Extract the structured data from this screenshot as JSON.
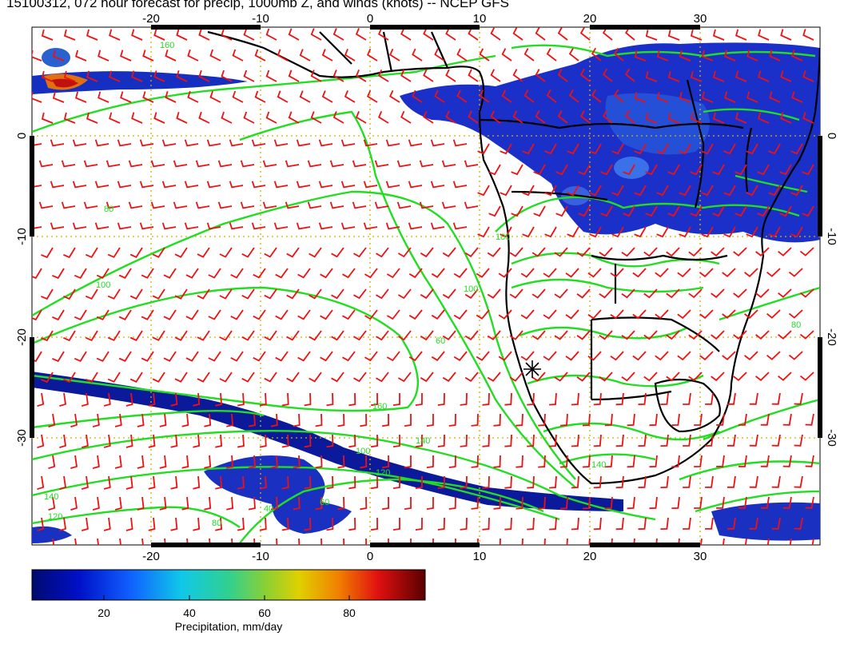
{
  "title": "15100312, 072 hour forecast for precip, 1000mb Z, and winds (knots) -- NCEP GFS",
  "map": {
    "lon_ticks": [
      "-20",
      "-10",
      "0",
      "10",
      "20",
      "30"
    ],
    "lat_ticks": [
      "0",
      "-10",
      "-20",
      "-30"
    ],
    "contour_color": "#22dd22",
    "barb_color": "#ee1111",
    "grid_color": "#d4b000",
    "coast_color": "#000000",
    "contour_labels": [
      "40",
      "60",
      "80",
      "100",
      "120",
      "140",
      "160",
      "140",
      "120",
      "100",
      "80",
      "60",
      "100",
      "140",
      "100",
      "80",
      "160"
    ]
  },
  "colorbar": {
    "ticks": [
      "20",
      "40",
      "60",
      "80"
    ],
    "label": "Precipitation, mm/day"
  }
}
